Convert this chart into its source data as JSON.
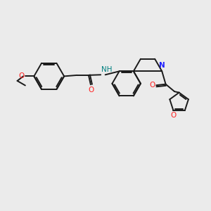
{
  "bg_color": "#ebebeb",
  "bond_color": "#1a1a1a",
  "N_color": "#2020ff",
  "O_color": "#ff2020",
  "NH_color": "#008080",
  "lw": 1.4,
  "figsize": [
    3.0,
    3.0
  ],
  "dpi": 100,
  "xlim": [
    0,
    10
  ],
  "ylim": [
    0,
    10
  ]
}
